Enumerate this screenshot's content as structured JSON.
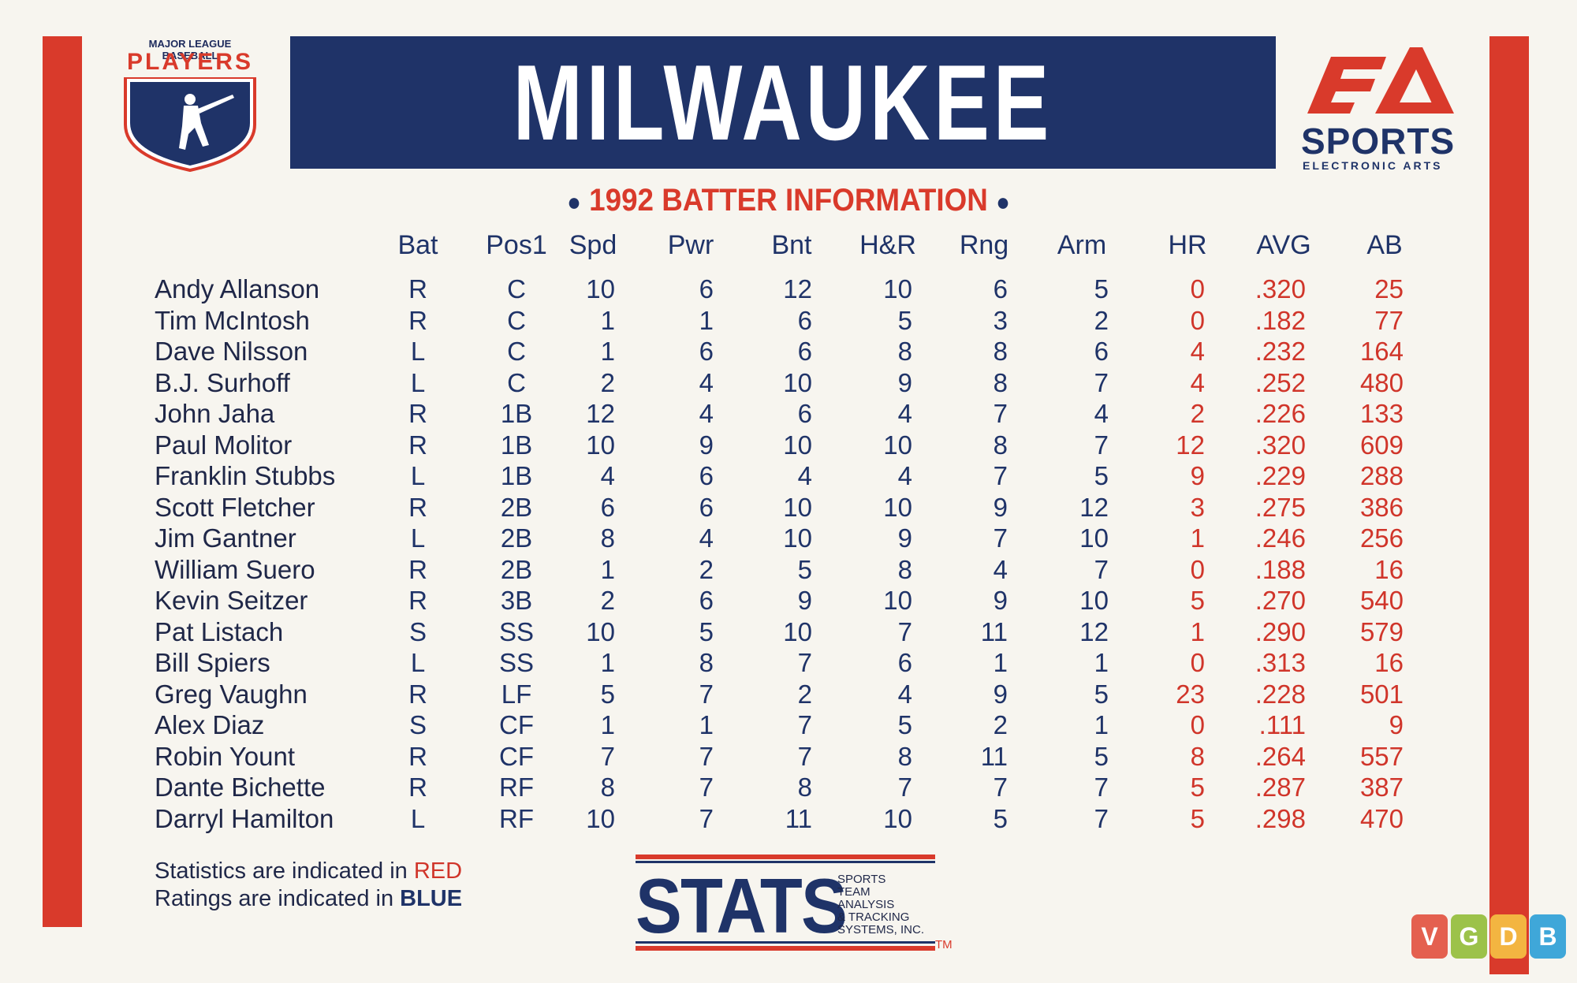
{
  "brand": {
    "mlbpa_top": "MAJOR LEAGUE BASEBALL",
    "mlbpa_players": "PLAYERS",
    "ea_sports": "SPORTS",
    "ea_sub": "ELECTRONIC ARTS"
  },
  "title": "MILWAUKEE",
  "subtitle": "1992 BATTER INFORMATION",
  "columns": [
    "Bat",
    "Pos1",
    "Spd",
    "Pwr",
    "Bnt",
    "H&R",
    "Rng",
    "Arm",
    "HR",
    "AVG",
    "AB"
  ],
  "players": [
    [
      "Andy Allanson",
      "R",
      "C",
      "10",
      "6",
      "12",
      "10",
      "6",
      "5",
      "0",
      ".320",
      "25"
    ],
    [
      "Tim McIntosh",
      "R",
      "C",
      "1",
      "1",
      "6",
      "5",
      "3",
      "2",
      "0",
      ".182",
      "77"
    ],
    [
      "Dave Nilsson",
      "L",
      "C",
      "1",
      "6",
      "6",
      "8",
      "8",
      "6",
      "4",
      ".232",
      "164"
    ],
    [
      "B.J. Surhoff",
      "L",
      "C",
      "2",
      "4",
      "10",
      "9",
      "8",
      "7",
      "4",
      ".252",
      "480"
    ],
    [
      "John Jaha",
      "R",
      "1B",
      "12",
      "4",
      "6",
      "4",
      "7",
      "4",
      "2",
      ".226",
      "133"
    ],
    [
      "Paul Molitor",
      "R",
      "1B",
      "10",
      "9",
      "10",
      "10",
      "8",
      "7",
      "12",
      ".320",
      "609"
    ],
    [
      "Franklin Stubbs",
      "L",
      "1B",
      "4",
      "6",
      "4",
      "4",
      "7",
      "5",
      "9",
      ".229",
      "288"
    ],
    [
      "Scott Fletcher",
      "R",
      "2B",
      "6",
      "6",
      "10",
      "10",
      "9",
      "12",
      "3",
      ".275",
      "386"
    ],
    [
      "Jim Gantner",
      "L",
      "2B",
      "8",
      "4",
      "10",
      "9",
      "7",
      "10",
      "1",
      ".246",
      "256"
    ],
    [
      "William Suero",
      "R",
      "2B",
      "1",
      "2",
      "5",
      "8",
      "4",
      "7",
      "0",
      ".188",
      "16"
    ],
    [
      "Kevin Seitzer",
      "R",
      "3B",
      "2",
      "6",
      "9",
      "10",
      "9",
      "10",
      "5",
      ".270",
      "540"
    ],
    [
      "Pat Listach",
      "S",
      "SS",
      "10",
      "5",
      "10",
      "7",
      "11",
      "12",
      "1",
      ".290",
      "579"
    ],
    [
      "Bill Spiers",
      "L",
      "SS",
      "1",
      "8",
      "7",
      "6",
      "1",
      "1",
      "0",
      ".313",
      "16"
    ],
    [
      "Greg Vaughn",
      "R",
      "LF",
      "5",
      "7",
      "2",
      "4",
      "9",
      "5",
      "23",
      ".228",
      "501"
    ],
    [
      "Alex Diaz",
      "S",
      "CF",
      "1",
      "1",
      "7",
      "5",
      "2",
      "1",
      "0",
      ".111",
      "9"
    ],
    [
      "Robin Yount",
      "R",
      "CF",
      "7",
      "7",
      "7",
      "8",
      "11",
      "5",
      "8",
      ".264",
      "557"
    ],
    [
      "Dante Bichette",
      "R",
      "RF",
      "8",
      "7",
      "8",
      "7",
      "7",
      "7",
      "5",
      ".287",
      "387"
    ],
    [
      "Darryl Hamilton",
      "L",
      "RF",
      "10",
      "7",
      "11",
      "10",
      "5",
      "7",
      "5",
      ".298",
      "470"
    ]
  ],
  "legend": {
    "stats_prefix": "Statistics are indicated in ",
    "stats_word": "RED",
    "ratings_prefix": "Ratings are indicated in ",
    "ratings_word": "BLUE"
  },
  "stats_logo": {
    "big": "STATS",
    "lines": [
      "SPORTS",
      "TEAM",
      "ANALYSIS",
      "& TRACKING",
      "SYSTEMS, INC."
    ],
    "tm": "TM"
  },
  "vgdb": {
    "letters": [
      "V",
      "G",
      "D",
      "B"
    ],
    "colors": [
      "#e4604f",
      "#9cc24a",
      "#f3b541",
      "#3fa7d9"
    ]
  },
  "colors": {
    "navy": "#1f3368",
    "red": "#d93a2b"
  }
}
